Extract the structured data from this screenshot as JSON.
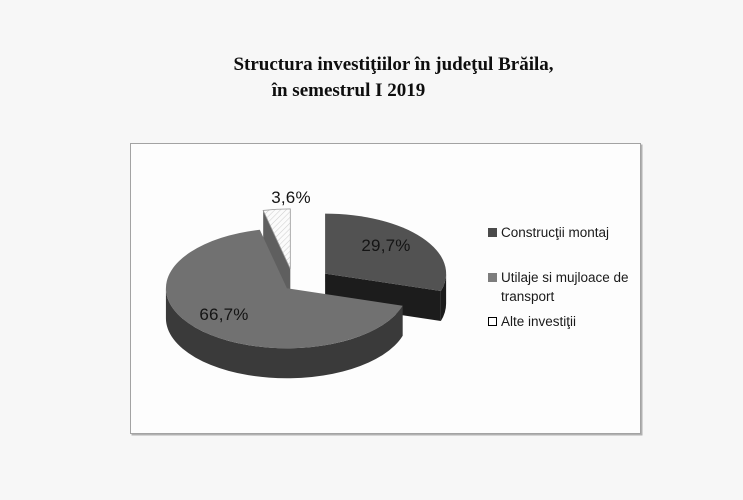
{
  "title": {
    "line1": "Structura investiţiilor în judeţul Brăila,",
    "line2": "în semestrul I 2019"
  },
  "chart_data": {
    "type": "pie",
    "style": "3d-exploded",
    "title": "Structura investiţiilor în judeţul Brăila, în semestrul I 2019",
    "unit": "%",
    "legend_position": "right",
    "slices": [
      {
        "name": "Construcţii montaj",
        "value": 29.7,
        "label": "29,7%",
        "top_color": "#525252",
        "side_color": "#1c1c1c",
        "hatch": false
      },
      {
        "name": "Utilaje si mujloace de transport",
        "value": 66.7,
        "label": "66,7%",
        "top_color": "#717171",
        "side_color": "#3a3a3a",
        "hatch": false
      },
      {
        "name": "Alte investiţii",
        "value": 3.6,
        "label": "3,6%",
        "top_color": "#fbfbfb",
        "side_color": "#5f5f5f",
        "hatch": true,
        "hatch_color": "#cfcfcf",
        "outline_color": "#9a9a9a"
      }
    ]
  },
  "legend": {
    "items": [
      {
        "label": "Construcţii montaj",
        "swatch_color": "#4a4a4a",
        "swatch_style": "filled"
      },
      {
        "label": "Utilaje si mujloace de transport",
        "swatch_color": "#7d7d7d",
        "swatch_style": "filled"
      },
      {
        "label": "Alte investiţii",
        "swatch_color": "#ffffff",
        "swatch_style": "outlined",
        "swatch_border_color": "#000000"
      }
    ]
  },
  "colors": {
    "page_background": "#f7f7f7",
    "plot_background": "#fdfdfd",
    "plot_border": "#a3a3a3",
    "title_text": "#0e0e0e",
    "label_text": "#141414"
  }
}
